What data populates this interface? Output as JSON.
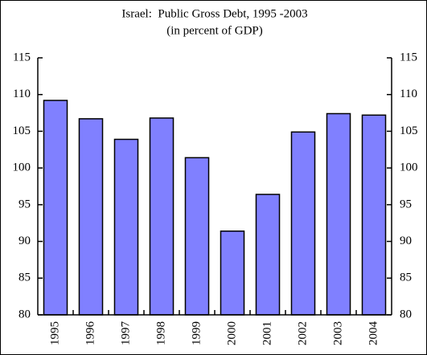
{
  "chart_data": {
    "type": "bar",
    "title": "Israel:  Public Gross Debt, 1995 -2003",
    "subtitle": "(in percent of GDP)",
    "categories": [
      "1995",
      "1996",
      "1997",
      "1998",
      "1999",
      "2000",
      "2001",
      "2002",
      "2003",
      "2004"
    ],
    "values": [
      109.2,
      106.7,
      103.9,
      106.8,
      101.4,
      91.4,
      96.4,
      104.9,
      107.4,
      107.2
    ],
    "color": "#8080ff",
    "ylim": [
      80,
      115
    ],
    "yticks": [
      80,
      85,
      90,
      95,
      100,
      105,
      110,
      115
    ],
    "y2lim": [
      80,
      115
    ],
    "y2ticks": [
      80,
      85,
      90,
      95,
      100,
      105,
      110,
      115
    ]
  }
}
